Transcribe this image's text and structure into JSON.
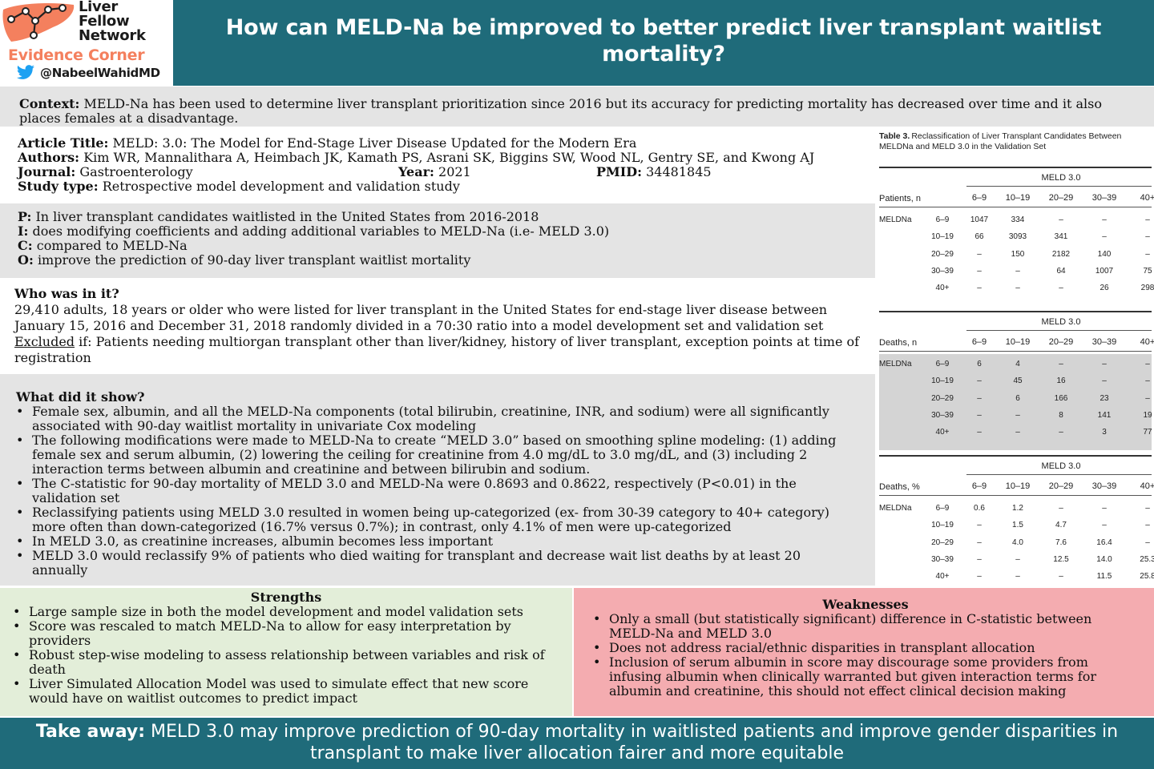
{
  "brand": {
    "line1": "Liver",
    "line2": "Fellow",
    "line3": "Network",
    "subtitle": "Evidence Corner",
    "handle": "@NabeelWahidMD",
    "logo_icon": "liver-network-logo",
    "twitter_icon": "twitter-bird-icon",
    "colors": {
      "header": "#1f6b7a",
      "logo": "#f4805e",
      "twitter": "#1da1f2"
    }
  },
  "title": "How can MELD-Na be improved to better predict liver transplant waitlist mortality?",
  "context": {
    "label": "Context:",
    "text": "MELD-Na has been used to determine liver transplant prioritization since 2016 but its accuracy for predicting mortality has decreased over time and it also places females at a disadvantage."
  },
  "article": {
    "title_label": "Article Title:",
    "title": "MELD: 3.0: The Model for End-Stage Liver Disease Updated for the Modern Era",
    "authors_label": "Authors:",
    "authors": "Kim WR, Mannalithara A, Heimbach JK, Kamath PS, Asrani SK, Biggins SW, Wood NL, Gentry SE, and Kwong AJ",
    "journal_label": "Journal:",
    "journal": " Gastroenterology",
    "year_label": "Year:",
    "year": "2021",
    "pmid_label": "PMID:",
    "pmid": "34481845",
    "type_label": "Study type:",
    "type": "Retrospective model development and validation study"
  },
  "pico": {
    "p_label": "P:",
    "p": "In liver transplant candidates waitlisted in the United States from 2016-2018",
    "i_label": "I:",
    "i": "does modifying coefficients and adding additional variables to MELD-Na (i.e- MELD 3.0)",
    "c_label": "C:",
    "c": "compared to MELD-Na",
    "o_label": "O:",
    "o": "improve the prediction of 90-day liver transplant waitlist mortality"
  },
  "who": {
    "heading": "Who was in it?",
    "text": "29,410 adults, 18 years or older who were listed for liver transplant in the United States for end-stage liver disease between January 15, 2016 and December 31, 2018 randomly divided in a 70:30 ratio into a model development set and validation set",
    "excluded_label": "Excluded",
    "excluded_text": " if: Patients needing multiorgan transplant other than liver/kidney, history of liver transplant, exception points at time of registration"
  },
  "show": {
    "heading": "What did it show?",
    "bullets": [
      "Female sex, albumin, and all the MELD-Na components (total bilirubin, creatinine, INR, and sodium) were all significantly associated with 90-day waitlist mortality in univariate Cox modeling",
      "The following modifications were made to MELD-Na to create “MELD 3.0” based on smoothing spline modeling: (1) adding female sex and serum albumin, (2) lowering the ceiling for creatinine from 4.0 mg/dL to 3.0 mg/dL, and (3) including 2 interaction terms between albumin and creatinine and between bilirubin and sodium.",
      "The C-statistic for 90-day mortality of MELD 3.0 and MELD-Na were 0.8693 and 0.8622, respectively (P<0.01) in the validation set",
      "Reclassifying patients using MELD 3.0 resulted in women being up-categorized (ex- from 30-39 category to 40+ category) more often than down-categorized (16.7% versus 0.7%); in contrast, only 4.1% of men were up-categorized",
      "In MELD 3.0, as creatinine increases, albumin becomes less important",
      "MELD 3.0 would reclassify 9% of patients who died waiting for transplant and decrease wait list deaths by at least 20 annually"
    ]
  },
  "strengths": {
    "heading": "Strengths",
    "bullets": [
      "Large sample size in both the model development and model validation sets",
      "Score was rescaled to match MELD-Na to allow for easy interpretation by providers",
      "Robust step-wise modeling to assess relationship between variables and risk of death",
      "Liver Simulated Allocation Model was used to simulate effect that new score would have on waitlist outcomes to predict impact"
    ]
  },
  "weaknesses": {
    "heading": "Weaknesses",
    "bullets": [
      "Only a small (but statistically significant) difference in C-statistic between MELD-Na and MELD 3.0",
      "Does not address racial/ethnic disparities in transplant allocation",
      "Inclusion of serum albumin in score may discourage some providers from infusing albumin when clinically warranted but given interaction terms for albumin and creatinine, this should not effect clinical decision making"
    ]
  },
  "takeaway": {
    "label": "Take away:",
    "text": " MELD 3.0 may improve prediction of 90-day mortality in waitlisted patients and improve gender disparities in transplant to make liver allocation fairer and more equitable"
  },
  "table3": {
    "caption_label": "Table 3.",
    "caption": "Reclassification of Liver Transplant Candidates Between MELDNa and MELD 3.0 in the Validation Set",
    "col_group": "MELD 3.0",
    "row_group": "MELDNa",
    "cols": [
      "6–9",
      "10–19",
      "20–29",
      "30–39",
      "40+"
    ],
    "rows": [
      "6–9",
      "10–19",
      "20–29",
      "30–39",
      "40+"
    ],
    "blocks": [
      {
        "label": "Patients, n",
        "values": [
          [
            "1047",
            "334",
            "–",
            "–",
            "–"
          ],
          [
            "66",
            "3093",
            "341",
            "–",
            "–"
          ],
          [
            "–",
            "150",
            "2182",
            "140",
            "–"
          ],
          [
            "–",
            "–",
            "64",
            "1007",
            "75"
          ],
          [
            "–",
            "–",
            "–",
            "26",
            "298"
          ]
        ]
      },
      {
        "label": "Deaths, n",
        "values": [
          [
            "6",
            "4",
            "–",
            "–",
            "–"
          ],
          [
            "–",
            "45",
            "16",
            "–",
            "–"
          ],
          [
            "–",
            "6",
            "166",
            "23",
            "–"
          ],
          [
            "–",
            "–",
            "8",
            "141",
            "19"
          ],
          [
            "–",
            "–",
            "–",
            "3",
            "77"
          ]
        ]
      },
      {
        "label": "Deaths, %",
        "values": [
          [
            "0.6",
            "1.2",
            "–",
            "–",
            "–"
          ],
          [
            "–",
            "1.5",
            "4.7",
            "–",
            "–"
          ],
          [
            "–",
            "4.0",
            "7.6",
            "16.4",
            "–"
          ],
          [
            "–",
            "–",
            "12.5",
            "14.0",
            "25.3"
          ],
          [
            "–",
            "–",
            "–",
            "11.5",
            "25.8"
          ]
        ]
      }
    ]
  }
}
